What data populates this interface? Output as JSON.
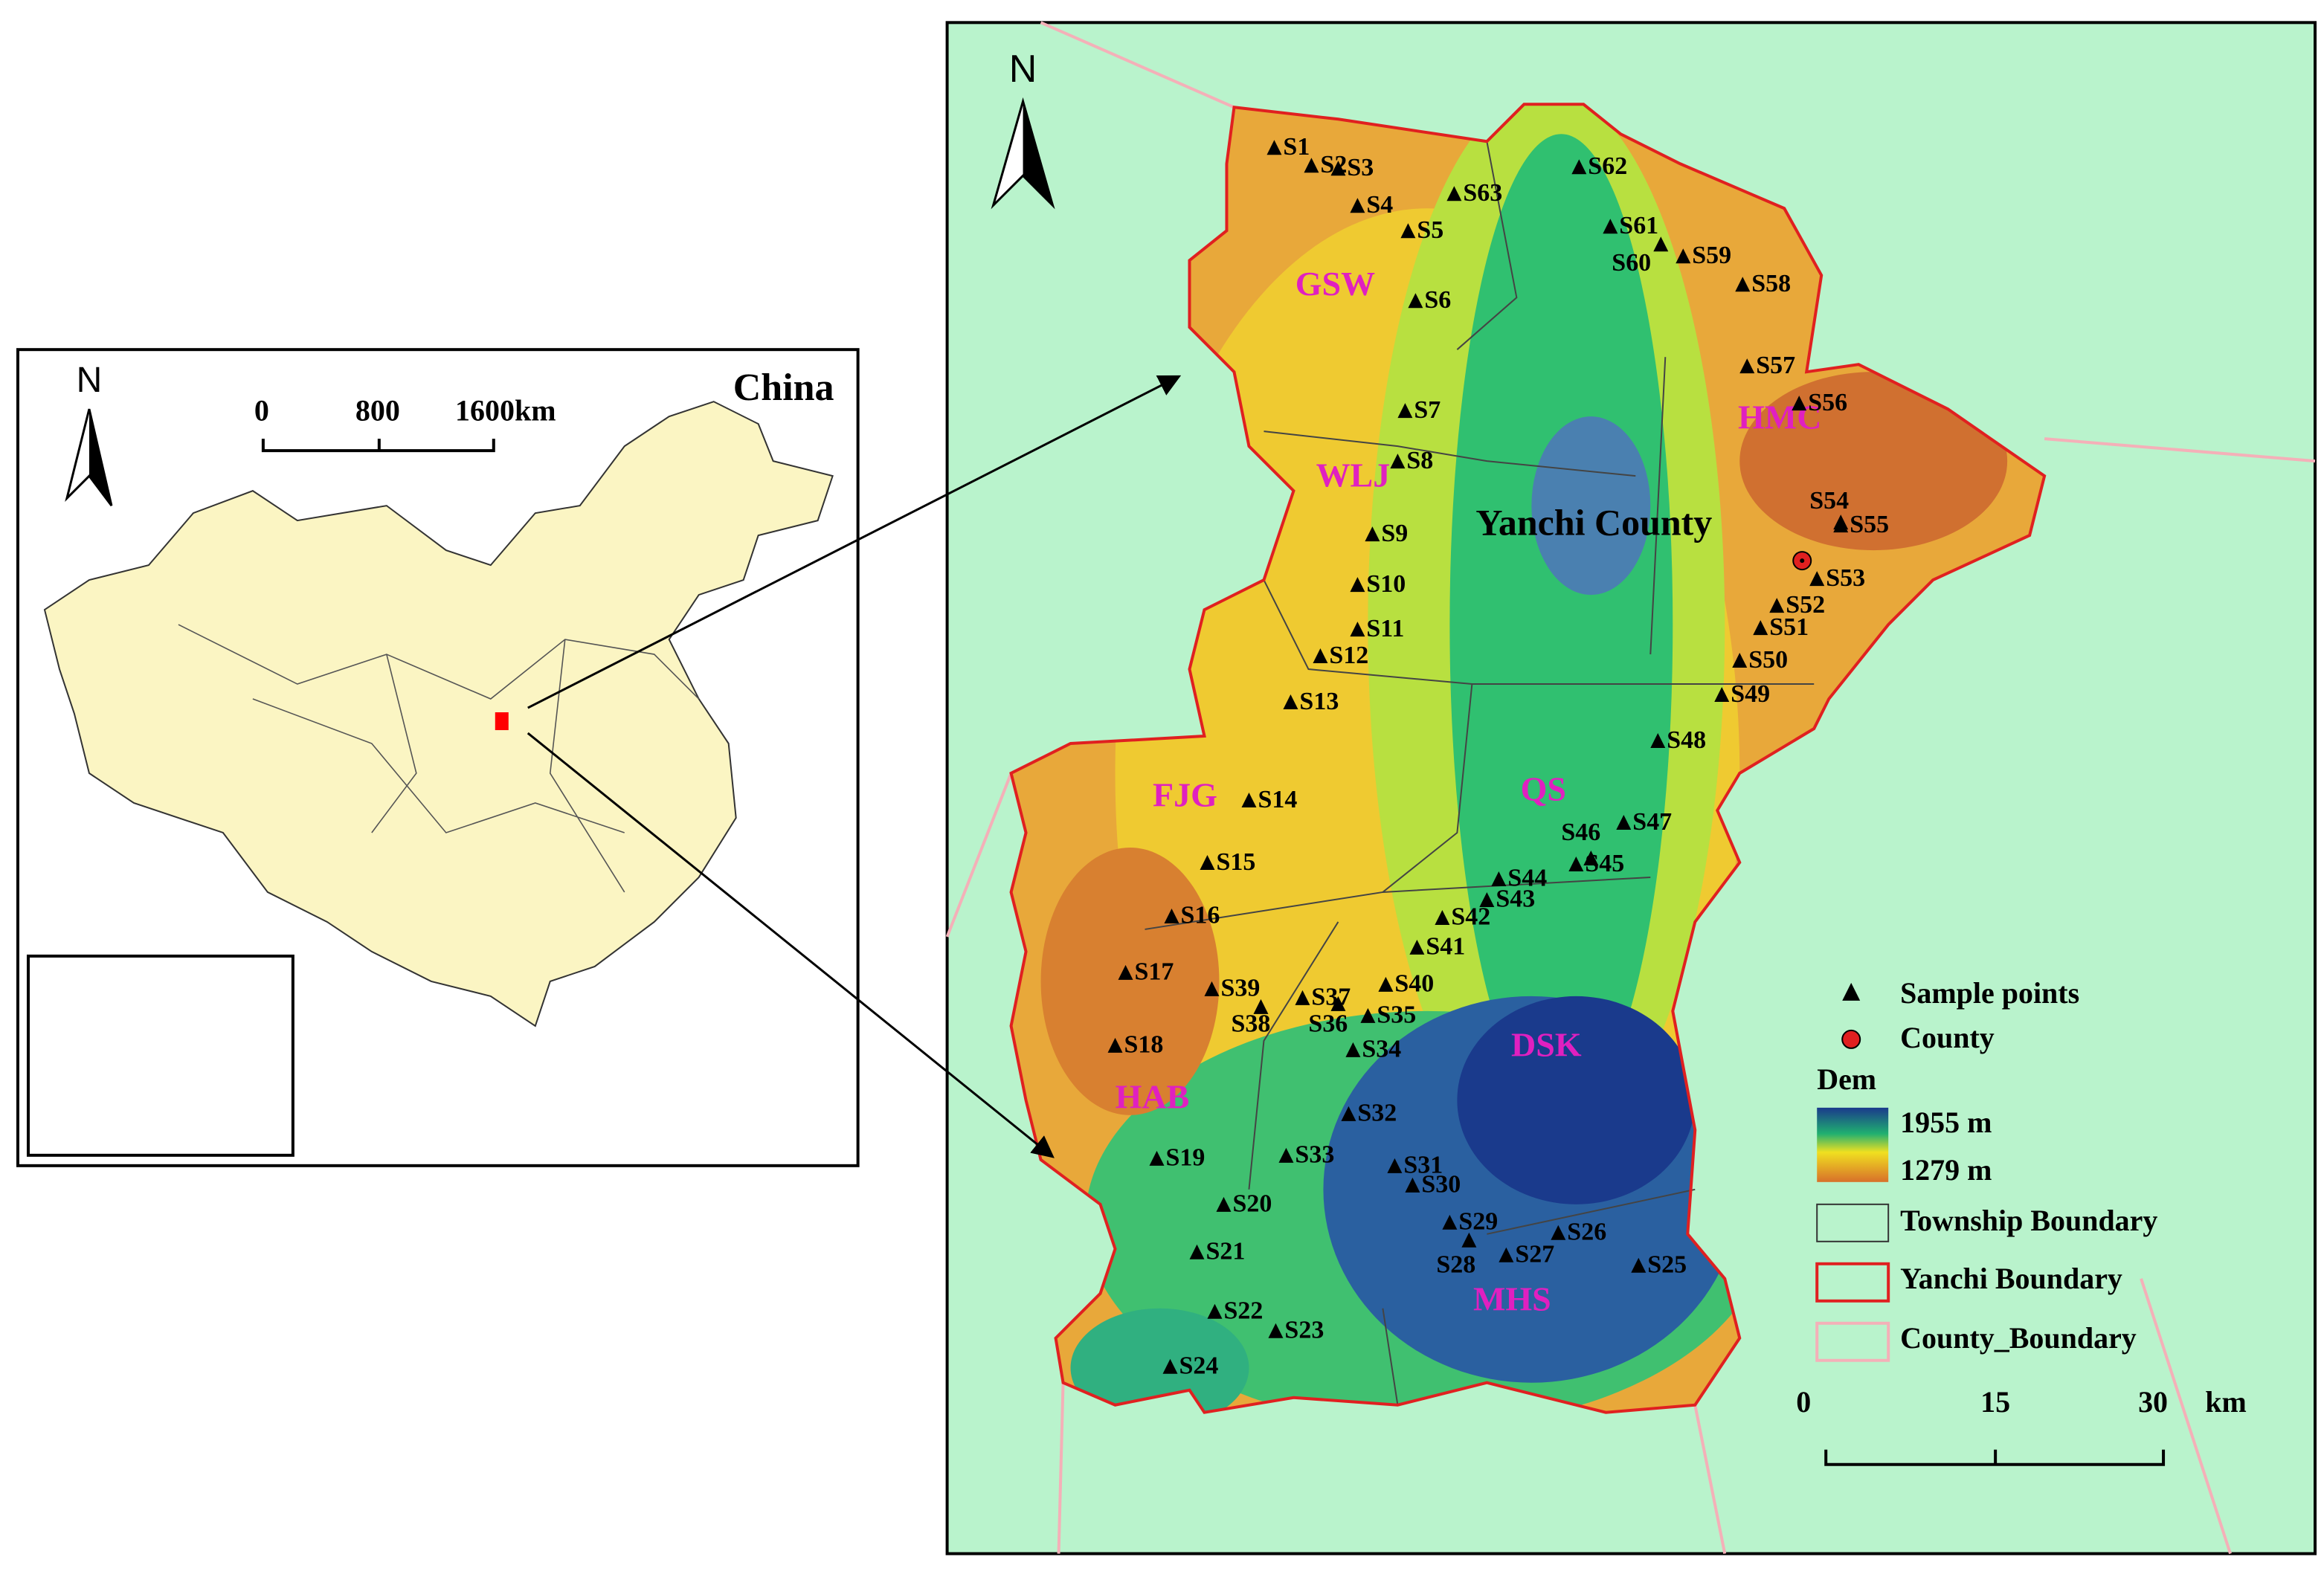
{
  "inset_map": {
    "title": "China",
    "north": "N",
    "scale": [
      "0",
      "800",
      "1600km"
    ]
  },
  "main_map": {
    "north": "N",
    "county": "Yanchi County",
    "townships": [
      "GSW",
      "WLJ",
      "HMC",
      "FJG",
      "QS",
      "HAB",
      "DSK",
      "MHS"
    ],
    "samples": [
      "S1",
      "S2",
      "S3",
      "S4",
      "S5",
      "S6",
      "S7",
      "S8",
      "S9",
      "S10",
      "S11",
      "S12",
      "S13",
      "S14",
      "S15",
      "S16",
      "S17",
      "S18",
      "S19",
      "S20",
      "S21",
      "S22",
      "S23",
      "S24",
      "S25",
      "S26",
      "S27",
      "S28",
      "S29",
      "S30",
      "S31",
      "S32",
      "S33",
      "S34",
      "S35",
      "S36",
      "S37",
      "S38",
      "S39",
      "S40",
      "S41",
      "S42",
      "S43",
      "S44",
      "S45",
      "S46",
      "S47",
      "S48",
      "S49",
      "S50",
      "S51",
      "S52",
      "S53",
      "S54",
      "S55",
      "S56",
      "S57",
      "S58",
      "S59",
      "S60",
      "S61",
      "S62",
      "S63"
    ],
    "legend": {
      "items": [
        "Sample points",
        "County"
      ],
      "dem_title": "Dem",
      "dem_max": "1955 m",
      "dem_min": "1279 m",
      "boundaries": [
        "Township Boundary",
        "Yanchi Boundary",
        "County_Boundary"
      ]
    },
    "scale": [
      "0",
      "15",
      "30",
      "km"
    ]
  }
}
